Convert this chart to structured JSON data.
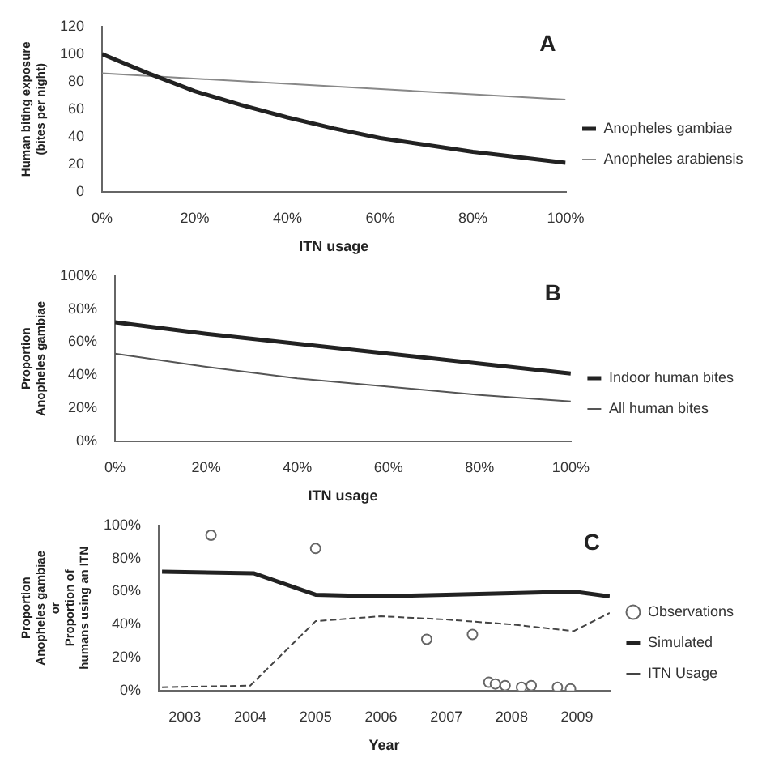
{
  "chart_data": [
    {
      "type": "line",
      "title": "A",
      "xlabel": "ITN usage",
      "ylabel": "Human biting exposure (bites per night)",
      "legend": "right",
      "xlim": [
        0,
        100
      ],
      "xticks": [
        {
          "value": 0,
          "label": "0%"
        },
        {
          "value": 20,
          "label": "20%"
        },
        {
          "value": 40,
          "label": "40%"
        },
        {
          "value": 60,
          "label": "60%"
        },
        {
          "value": 80,
          "label": "80%"
        },
        {
          "value": 100,
          "label": "100%"
        }
      ],
      "ylim": [
        0,
        120
      ],
      "yticks": [
        0,
        20,
        40,
        60,
        80,
        100,
        120
      ],
      "series": [
        {
          "name": "Anopheles gambiae",
          "color": "#222222",
          "x": [
            0,
            10,
            20,
            30,
            40,
            50,
            60,
            70,
            80,
            90,
            100
          ],
          "values": [
            100,
            86,
            73,
            63,
            54,
            46,
            39,
            34,
            29,
            25,
            21
          ]
        },
        {
          "name": "Anopheles arabiensis",
          "color": "#888888",
          "x": [
            0,
            100
          ],
          "values": [
            86,
            67
          ]
        }
      ]
    },
    {
      "type": "line",
      "title": "B",
      "xlabel": "ITN usage",
      "ylabel": "Proportion Anopheles gambiae",
      "legend": "right",
      "xlim": [
        0,
        100
      ],
      "xticks": [
        {
          "value": 0,
          "label": "0%"
        },
        {
          "value": 20,
          "label": "20%"
        },
        {
          "value": 40,
          "label": "40%"
        },
        {
          "value": 60,
          "label": "60%"
        },
        {
          "value": 80,
          "label": "80%"
        },
        {
          "value": 100,
          "label": "100%"
        }
      ],
      "ylim": [
        0,
        100
      ],
      "yticks": [
        {
          "value": 0,
          "label": "0%"
        },
        {
          "value": 20,
          "label": "20%"
        },
        {
          "value": 40,
          "label": "40%"
        },
        {
          "value": 60,
          "label": "60%"
        },
        {
          "value": 80,
          "label": "80%"
        },
        {
          "value": 100,
          "label": "100%"
        }
      ],
      "series": [
        {
          "name": "Indoor human bites",
          "color": "#222222",
          "x": [
            0,
            20,
            40,
            60,
            80,
            100
          ],
          "values": [
            72,
            65,
            59,
            53,
            47,
            41
          ]
        },
        {
          "name": "All human bites",
          "color": "#555555",
          "x": [
            0,
            20,
            40,
            60,
            80,
            100
          ],
          "values": [
            53,
            45,
            38,
            33,
            28,
            24
          ]
        }
      ]
    },
    {
      "type": "line",
      "title": "C",
      "xlabel": "Year",
      "ylabel": "Proportion Anopheles gambiae or Proportion of humans using an ITN",
      "legend": "right",
      "xlim": [
        2002.6,
        2009.5
      ],
      "xticks": [
        2003,
        2004,
        2005,
        2006,
        2007,
        2008,
        2009
      ],
      "ylim": [
        0,
        100
      ],
      "yticks": [
        {
          "value": 0,
          "label": "0%"
        },
        {
          "value": 20,
          "label": "20%"
        },
        {
          "value": 40,
          "label": "40%"
        },
        {
          "value": 60,
          "label": "60%"
        },
        {
          "value": 80,
          "label": "80%"
        },
        {
          "value": 100,
          "label": "100%"
        }
      ],
      "series": [
        {
          "name": "Observations",
          "type": "scatter",
          "marker": "circle",
          "color": "#666666",
          "x": [
            2003.4,
            2005.0,
            2006.7,
            2007.4,
            2007.65,
            2007.75,
            2007.9,
            2008.15,
            2008.3,
            2008.7,
            2008.9
          ],
          "values": [
            94,
            86,
            31,
            34,
            5,
            4,
            3,
            2,
            3,
            2,
            1
          ]
        },
        {
          "name": "Simulated",
          "color": "#222222",
          "x": [
            2002.65,
            2004.05,
            2005.0,
            2006.0,
            2007.0,
            2008.0,
            2008.95,
            2009.5
          ],
          "values": [
            72,
            71,
            58,
            57,
            58,
            59,
            60,
            57
          ]
        },
        {
          "name": "ITN Usage",
          "color": "#444444",
          "line_style": "dashed",
          "x": [
            2002.65,
            2004.0,
            2005.0,
            2006.0,
            2007.0,
            2008.0,
            2008.95,
            2009.5
          ],
          "values": [
            2,
            3,
            42,
            45,
            43,
            40,
            36,
            47
          ]
        }
      ]
    }
  ]
}
